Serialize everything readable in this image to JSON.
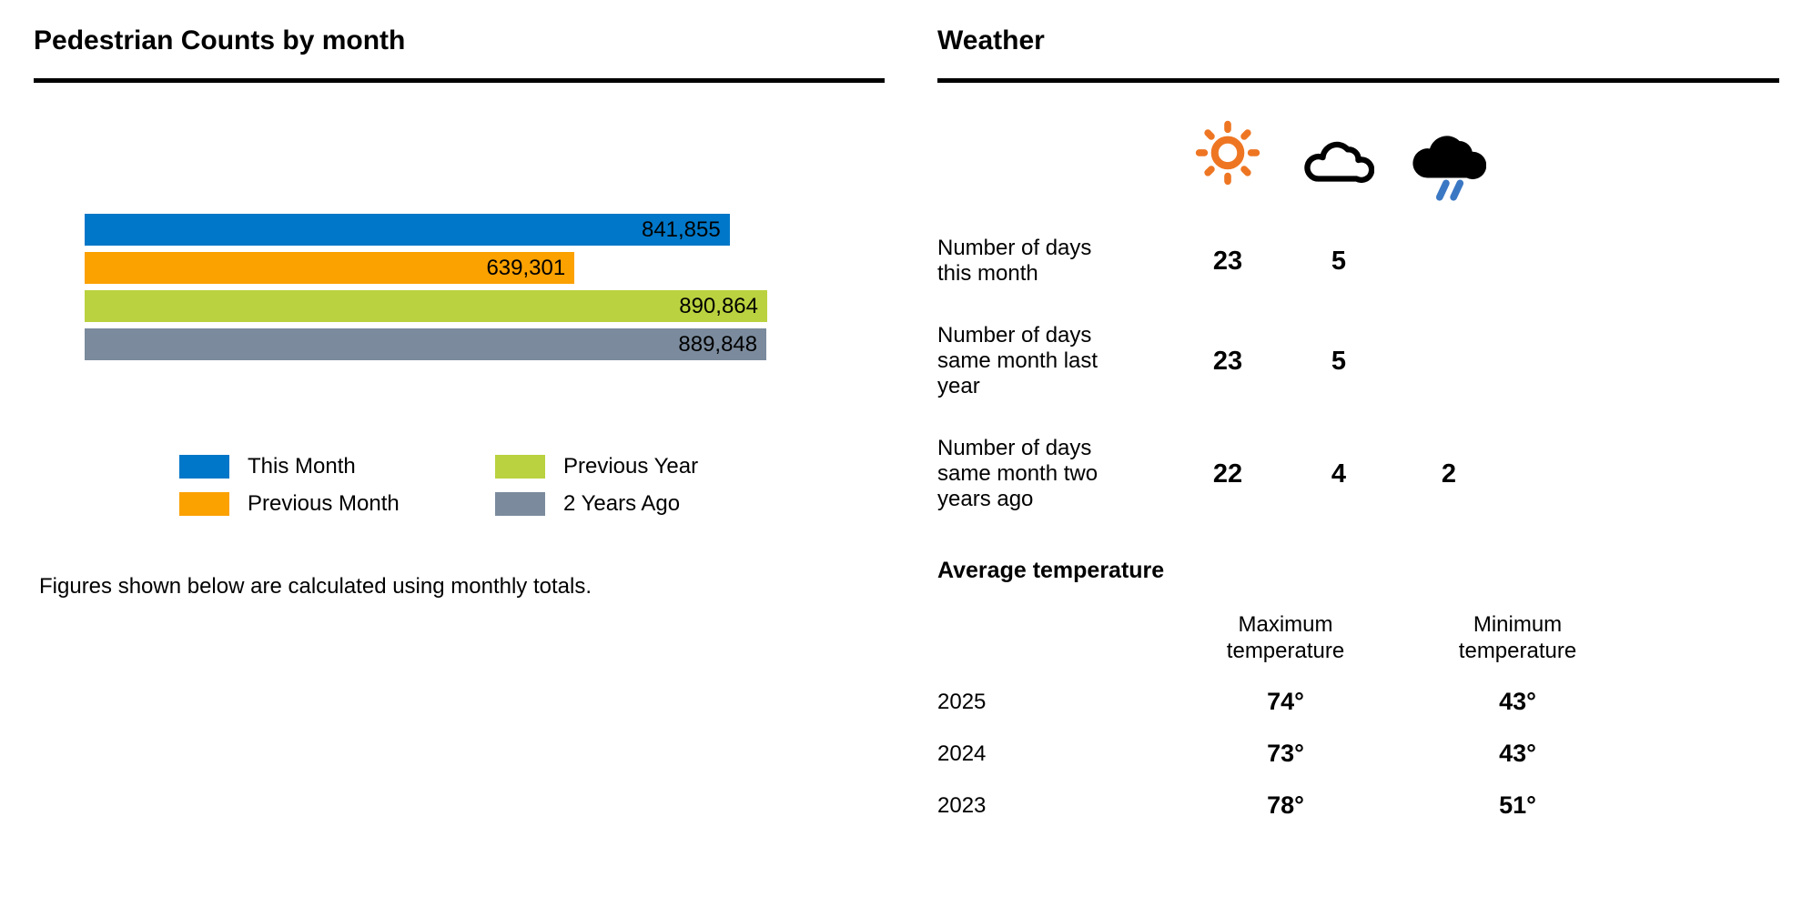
{
  "left_panel": {
    "title": "Pedestrian Counts by month",
    "footnote": "Figures shown below are calculated using monthly totals."
  },
  "right_panel": {
    "title": "Weather",
    "icons": [
      "sun-icon",
      "cloud-icon",
      "rain-cloud-icon"
    ],
    "icon_colors": {
      "sun": "#EE7623",
      "cloud_outline": "#000000",
      "rain_cloud": "#000000",
      "rain_drops": "#3B78C4"
    }
  },
  "chart_data": [
    {
      "type": "bar",
      "orientation": "horizontal",
      "title": "Pedestrian Counts by month",
      "categories": [
        "This Month",
        "Previous Month",
        "Previous Year",
        "2 Years Ago"
      ],
      "values": [
        841855,
        639301,
        890864,
        889848
      ],
      "value_labels": [
        "841,855",
        "639,301",
        "890,864",
        "889,848"
      ],
      "colors": [
        "#0077C8",
        "#FBA100",
        "#BAD23F",
        "#7B8B9D"
      ],
      "xlim": [
        0,
        890864
      ],
      "grid": "off",
      "legend_position": "below-two-columns",
      "value_label_placement": "inside-bar-end"
    },
    {
      "type": "table",
      "title": "",
      "columns": [
        "sunny-days",
        "cloudy-days",
        "rainy-days"
      ],
      "rows": [
        {
          "label": "Number of days this month",
          "values": [
            "23",
            "5",
            ""
          ]
        },
        {
          "label": "Number of days same month last year",
          "values": [
            "23",
            "5",
            ""
          ]
        },
        {
          "label": "Number of days same month two years ago",
          "values": [
            "22",
            "4",
            "2"
          ]
        }
      ]
    },
    {
      "type": "table",
      "title": "Average temperature",
      "columns": [
        "Maximum temperature",
        "Minimum temperature"
      ],
      "rows": [
        {
          "label": "2025",
          "values": [
            "74°",
            "43°"
          ]
        },
        {
          "label": "2024",
          "values": [
            "73°",
            "43°"
          ]
        },
        {
          "label": "2023",
          "values": [
            "78°",
            "51°"
          ]
        }
      ]
    }
  ]
}
